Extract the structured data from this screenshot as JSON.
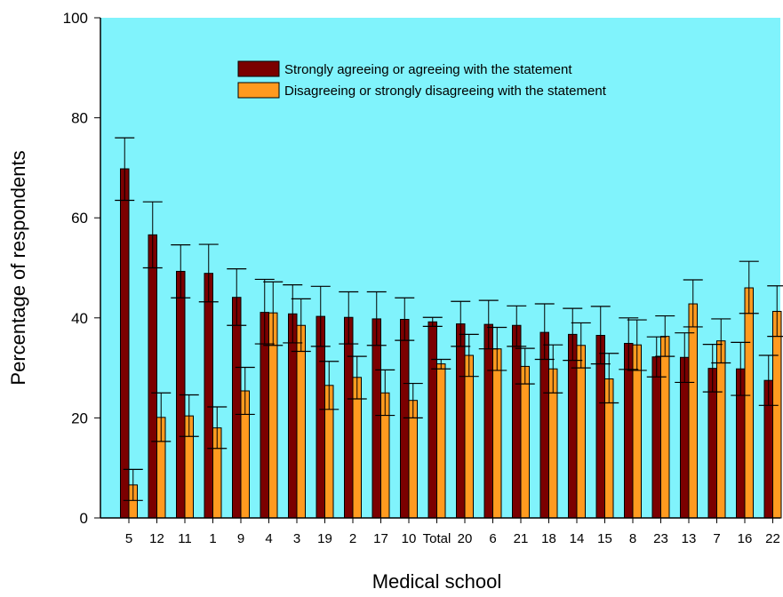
{
  "chart_data": {
    "type": "bar",
    "title": "",
    "xlabel": "Medical school",
    "ylabel": "Percentage of respondents",
    "ylim": [
      0,
      100
    ],
    "yticks": [
      0,
      20,
      40,
      60,
      80,
      100
    ],
    "grid": false,
    "error_bars": true,
    "legend_position": "top-center",
    "plot_background": "#80f3fc",
    "categories": [
      "5",
      "12",
      "11",
      "1",
      "9",
      "4",
      "3",
      "19",
      "2",
      "17",
      "10",
      "Total",
      "20",
      "6",
      "21",
      "18",
      "14",
      "15",
      "8",
      "23",
      "13",
      "7",
      "16",
      "22"
    ],
    "series": [
      {
        "name": "Strongly agreeing or agreeing with the statement",
        "color": "#7b0000",
        "values": [
          69.8,
          56.6,
          49.3,
          48.9,
          44.1,
          41.1,
          40.8,
          40.3,
          40.1,
          39.8,
          39.7,
          39.2,
          38.8,
          38.7,
          38.5,
          37.1,
          36.7,
          36.5,
          34.9,
          32.2,
          32.1,
          29.9,
          29.8,
          27.5
        ],
        "err_low": [
          63.5,
          50.0,
          44.0,
          43.2,
          38.5,
          34.8,
          35.0,
          34.3,
          34.8,
          34.5,
          35.5,
          38.3,
          34.3,
          33.8,
          34.3,
          31.7,
          31.5,
          30.8,
          29.7,
          28.2,
          27.1,
          25.2,
          24.5,
          22.5
        ],
        "err_high": [
          76.0,
          63.2,
          54.6,
          54.7,
          49.8,
          47.7,
          46.6,
          46.3,
          45.2,
          45.2,
          44.0,
          40.1,
          43.3,
          43.5,
          42.4,
          42.8,
          41.9,
          42.3,
          40.0,
          36.2,
          37.0,
          34.7,
          35.1,
          32.5
        ]
      },
      {
        "name": "Disagreeing or strongly disagreeing with the statement",
        "color": "#ff9a1f",
        "values": [
          6.6,
          20.1,
          20.4,
          18.0,
          25.4,
          41.0,
          38.5,
          26.5,
          28.1,
          25.0,
          23.5,
          30.8,
          32.5,
          33.8,
          30.3,
          29.8,
          34.5,
          27.8,
          34.6,
          36.3,
          42.8,
          35.4,
          46.0,
          41.3
        ],
        "err_low": [
          3.5,
          15.3,
          16.3,
          13.9,
          20.7,
          34.5,
          33.3,
          21.7,
          23.8,
          20.5,
          20.0,
          29.8,
          28.3,
          29.5,
          26.8,
          25.0,
          30.0,
          23.0,
          29.5,
          32.3,
          38.2,
          31.0,
          40.9,
          36.3
        ],
        "err_high": [
          9.7,
          25.0,
          24.6,
          22.2,
          30.1,
          47.2,
          43.8,
          31.3,
          32.3,
          29.6,
          26.9,
          31.7,
          36.7,
          38.1,
          33.9,
          34.6,
          39.0,
          32.9,
          39.6,
          40.4,
          47.6,
          39.8,
          51.3,
          46.4
        ]
      }
    ]
  }
}
